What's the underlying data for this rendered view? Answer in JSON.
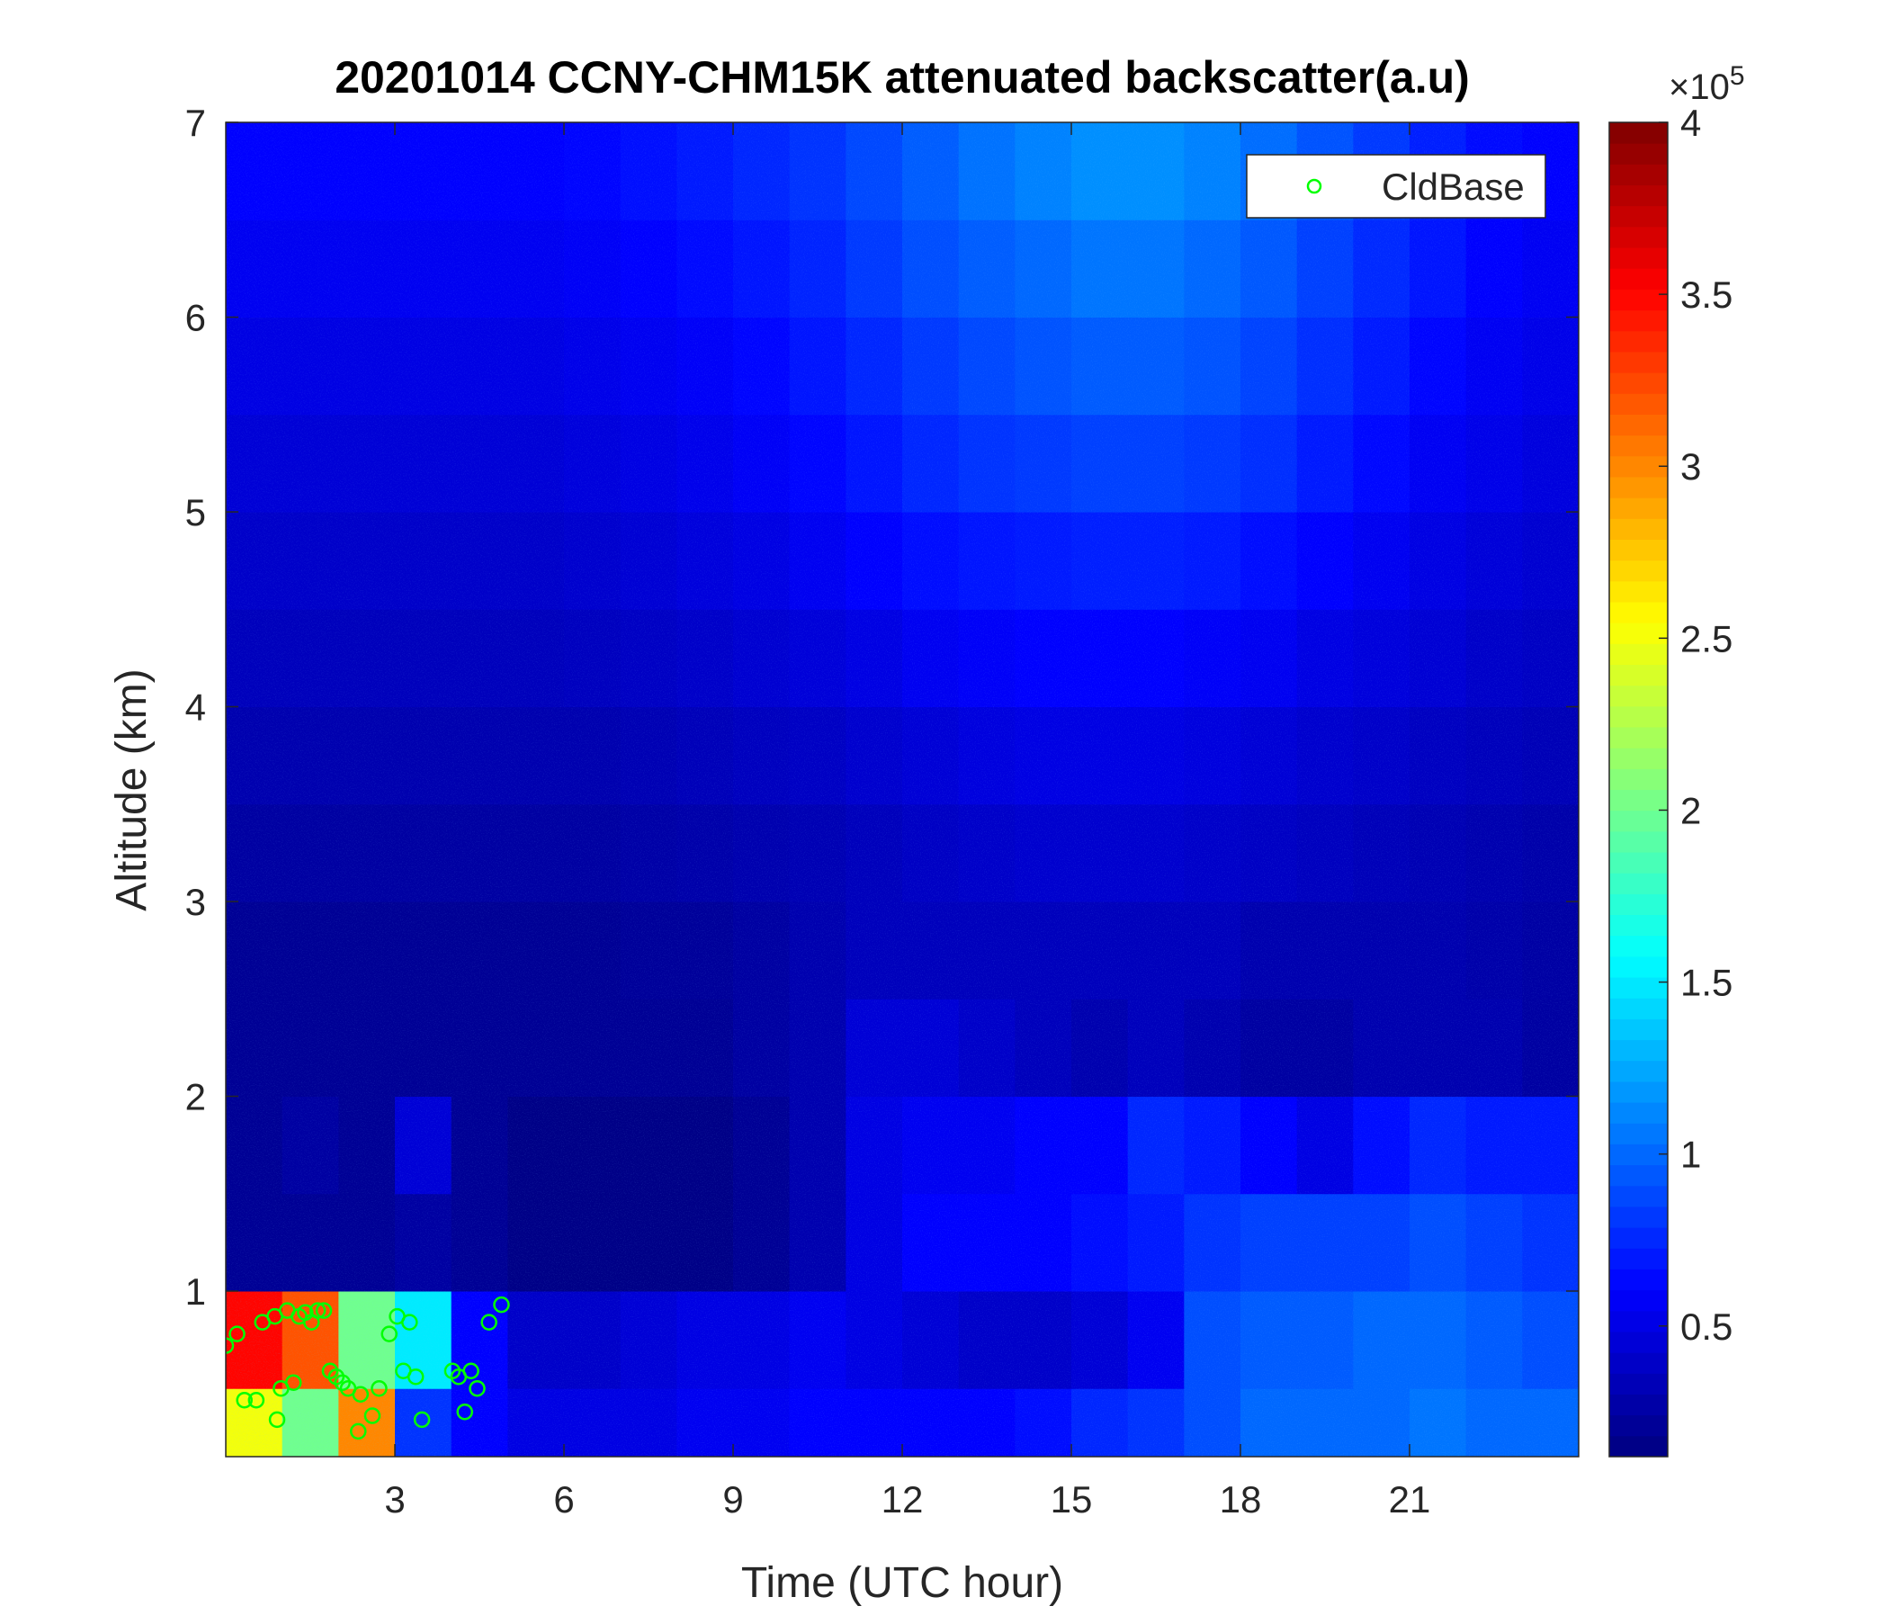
{
  "chart_data": {
    "type": "heatmap",
    "title": "20201014 CCNY-CHM15K attenuated backscatter(a.u)",
    "xlabel": "Time (UTC hour)",
    "ylabel": "Altitude (km)",
    "xlim": [
      0,
      24
    ],
    "ylim": [
      0.15,
      7
    ],
    "xticks": [
      3,
      6,
      9,
      12,
      15,
      18,
      21
    ],
    "yticks": [
      1,
      2,
      3,
      4,
      5,
      6,
      7
    ],
    "x": [
      0.5,
      1.5,
      2.5,
      3.5,
      4.5,
      5.5,
      6.5,
      7.5,
      8.5,
      9.5,
      10.5,
      11.5,
      12.5,
      13.5,
      14.5,
      15.5,
      16.5,
      17.5,
      18.5,
      19.5,
      20.5,
      21.5,
      22.5,
      23.5
    ],
    "y": [
      0.25,
      0.75,
      1.25,
      1.75,
      2.25,
      2.75,
      3.25,
      3.75,
      4.25,
      4.75,
      5.25,
      5.75,
      6.25,
      6.75
    ],
    "z": [
      [
        2.5,
        2,
        3,
        0.8,
        0.6,
        0.5,
        0.5,
        0.5,
        0.55,
        0.55,
        0.6,
        0.6,
        0.6,
        0.6,
        0.65,
        0.75,
        0.8,
        0.9,
        1.0,
        1.0,
        1.0,
        1.05,
        1.0,
        1.0
      ],
      [
        3.5,
        3.2,
        2,
        1.5,
        0.6,
        0.4,
        0.4,
        0.45,
        0.5,
        0.5,
        0.55,
        0.5,
        0.45,
        0.4,
        0.4,
        0.45,
        0.55,
        0.9,
        0.95,
        0.95,
        1.0,
        1.0,
        0.95,
        0.9
      ],
      [
        0.2,
        0.2,
        0.2,
        0.25,
        0.2,
        0.15,
        0.15,
        0.15,
        0.15,
        0.2,
        0.3,
        0.5,
        0.6,
        0.6,
        0.6,
        0.65,
        0.7,
        0.8,
        0.85,
        0.85,
        0.85,
        0.9,
        0.85,
        0.8
      ],
      [
        0.2,
        0.25,
        0.2,
        0.45,
        0.2,
        0.15,
        0.15,
        0.15,
        0.15,
        0.2,
        0.3,
        0.5,
        0.55,
        0.55,
        0.6,
        0.6,
        0.75,
        0.7,
        0.6,
        0.5,
        0.65,
        0.75,
        0.7,
        0.7
      ],
      [
        0.2,
        0.2,
        0.2,
        0.2,
        0.2,
        0.2,
        0.2,
        0.2,
        0.2,
        0.25,
        0.3,
        0.45,
        0.45,
        0.4,
        0.35,
        0.3,
        0.35,
        0.3,
        0.25,
        0.25,
        0.3,
        0.3,
        0.3,
        0.25
      ],
      [
        0.2,
        0.2,
        0.2,
        0.2,
        0.2,
        0.2,
        0.2,
        0.22,
        0.22,
        0.25,
        0.3,
        0.35,
        0.35,
        0.35,
        0.35,
        0.35,
        0.35,
        0.35,
        0.3,
        0.3,
        0.3,
        0.3,
        0.28,
        0.26
      ],
      [
        0.25,
        0.25,
        0.25,
        0.25,
        0.25,
        0.25,
        0.25,
        0.27,
        0.28,
        0.3,
        0.32,
        0.35,
        0.38,
        0.4,
        0.42,
        0.42,
        0.42,
        0.4,
        0.38,
        0.36,
        0.34,
        0.32,
        0.3,
        0.28
      ],
      [
        0.3,
        0.3,
        0.3,
        0.3,
        0.3,
        0.3,
        0.3,
        0.32,
        0.34,
        0.36,
        0.38,
        0.42,
        0.45,
        0.48,
        0.5,
        0.5,
        0.5,
        0.48,
        0.45,
        0.42,
        0.4,
        0.37,
        0.35,
        0.33
      ],
      [
        0.35,
        0.35,
        0.35,
        0.35,
        0.35,
        0.35,
        0.36,
        0.38,
        0.4,
        0.43,
        0.46,
        0.5,
        0.55,
        0.58,
        0.6,
        0.6,
        0.6,
        0.58,
        0.55,
        0.5,
        0.47,
        0.44,
        0.4,
        0.38
      ],
      [
        0.4,
        0.4,
        0.4,
        0.4,
        0.4,
        0.4,
        0.42,
        0.44,
        0.47,
        0.5,
        0.55,
        0.6,
        0.65,
        0.68,
        0.7,
        0.72,
        0.72,
        0.7,
        0.65,
        0.6,
        0.55,
        0.5,
        0.46,
        0.43
      ],
      [
        0.45,
        0.45,
        0.45,
        0.45,
        0.45,
        0.45,
        0.47,
        0.5,
        0.53,
        0.57,
        0.62,
        0.68,
        0.75,
        0.8,
        0.82,
        0.85,
        0.85,
        0.82,
        0.78,
        0.7,
        0.63,
        0.56,
        0.52,
        0.48
      ],
      [
        0.5,
        0.5,
        0.5,
        0.5,
        0.5,
        0.5,
        0.52,
        0.55,
        0.58,
        0.62,
        0.68,
        0.75,
        0.82,
        0.88,
        0.92,
        0.95,
        0.95,
        0.92,
        0.86,
        0.78,
        0.7,
        0.62,
        0.56,
        0.52
      ],
      [
        0.55,
        0.55,
        0.55,
        0.55,
        0.55,
        0.55,
        0.57,
        0.6,
        0.64,
        0.68,
        0.74,
        0.82,
        0.9,
        0.96,
        1.0,
        1.05,
        1.05,
        1.0,
        0.94,
        0.85,
        0.76,
        0.68,
        0.6,
        0.56
      ],
      [
        0.6,
        0.6,
        0.6,
        0.6,
        0.6,
        0.6,
        0.62,
        0.66,
        0.7,
        0.75,
        0.8,
        0.88,
        0.96,
        1.04,
        1.1,
        1.15,
        1.15,
        1.1,
        1.02,
        0.92,
        0.82,
        0.72,
        0.64,
        0.6
      ]
    ],
    "colormap": "jet",
    "clim": [
      0.12,
      4
    ],
    "cticks": [
      0.5,
      1,
      1.5,
      2,
      2.5,
      3,
      3.5,
      4
    ],
    "colorbar_multiplier": "×10",
    "colorbar_exponent": "5",
    "series": [
      {
        "name": "CldBase",
        "color": "#00ff00",
        "x": [
          0.0,
          0.2,
          0.33,
          0.54,
          0.65,
          0.87,
          0.98,
          1.09,
          1.2,
          1.3,
          1.41,
          1.52,
          1.63,
          1.74,
          1.85,
          1.96,
          2.07,
          2.17,
          2.39,
          2.6,
          2.72,
          2.9,
          3.04,
          3.15,
          3.26,
          3.37,
          3.48,
          4.02,
          4.13,
          4.24,
          4.35,
          4.46,
          4.67,
          4.89,
          0.91,
          2.35
        ],
        "y": [
          0.72,
          0.78,
          0.44,
          0.44,
          0.84,
          0.87,
          0.5,
          0.9,
          0.53,
          0.87,
          0.89,
          0.84,
          0.9,
          0.9,
          0.59,
          0.56,
          0.53,
          0.5,
          0.47,
          0.36,
          0.5,
          0.78,
          0.87,
          0.59,
          0.84,
          0.56,
          0.34,
          0.59,
          0.56,
          0.38,
          0.59,
          0.5,
          0.84,
          0.93,
          0.34,
          0.28
        ]
      }
    ],
    "legend": "northeast"
  }
}
